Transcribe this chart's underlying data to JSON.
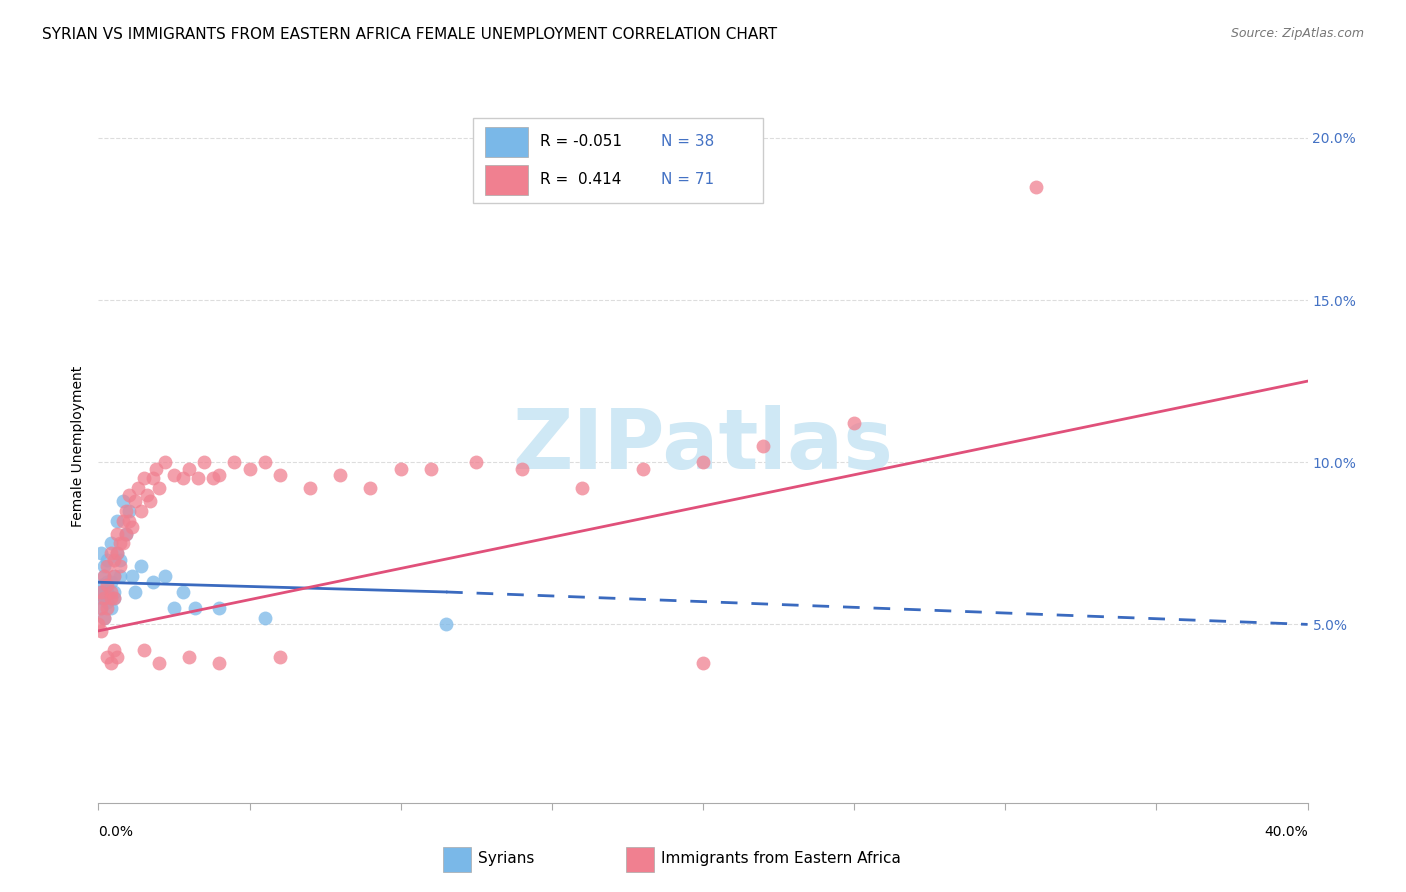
{
  "title": "SYRIAN VS IMMIGRANTS FROM EASTERN AFRICA FEMALE UNEMPLOYMENT CORRELATION CHART",
  "source": "Source: ZipAtlas.com",
  "ylabel": "Female Unemployment",
  "xlim": [
    0.0,
    0.4
  ],
  "ylim": [
    -0.005,
    0.215
  ],
  "plot_ylim": [
    0.0,
    0.215
  ],
  "yticks": [
    0.05,
    0.1,
    0.15,
    0.2
  ],
  "ytick_labels": [
    "5.0%",
    "10.0%",
    "15.0%",
    "20.0%"
  ],
  "xticks": [
    0.0,
    0.05,
    0.1,
    0.15,
    0.2,
    0.25,
    0.3,
    0.35,
    0.4
  ],
  "background_color": "#ffffff",
  "syrian_color": "#7ab8e8",
  "eastern_africa_color": "#f08090",
  "syrian_trend_color": "#3a6abf",
  "eastern_africa_trend_color": "#e0507a",
  "grid_color": "#dddddd",
  "watermark": "ZIPatlas",
  "watermark_color": "#cfe8f5",
  "title_fontsize": 11,
  "axis_label_fontsize": 10,
  "tick_fontsize": 10,
  "legend_r1": "R = -0.051",
  "legend_n1": "N = 38",
  "legend_r2": "R =  0.414",
  "legend_n2": "N = 71",
  "syrians_x": [
    0.0,
    0.001,
    0.001,
    0.001,
    0.001,
    0.002,
    0.002,
    0.002,
    0.002,
    0.002,
    0.003,
    0.003,
    0.003,
    0.003,
    0.004,
    0.004,
    0.004,
    0.005,
    0.005,
    0.005,
    0.006,
    0.006,
    0.007,
    0.007,
    0.008,
    0.009,
    0.01,
    0.011,
    0.012,
    0.014,
    0.018,
    0.022,
    0.025,
    0.028,
    0.032,
    0.04,
    0.055,
    0.115
  ],
  "syrians_y": [
    0.06,
    0.058,
    0.062,
    0.072,
    0.055,
    0.065,
    0.058,
    0.06,
    0.052,
    0.068,
    0.063,
    0.057,
    0.07,
    0.06,
    0.075,
    0.063,
    0.055,
    0.065,
    0.058,
    0.06,
    0.082,
    0.072,
    0.07,
    0.065,
    0.088,
    0.078,
    0.085,
    0.065,
    0.06,
    0.068,
    0.063,
    0.065,
    0.055,
    0.06,
    0.055,
    0.055,
    0.052,
    0.05
  ],
  "eastern_africa_x": [
    0.0,
    0.001,
    0.001,
    0.001,
    0.002,
    0.002,
    0.002,
    0.003,
    0.003,
    0.003,
    0.004,
    0.004,
    0.004,
    0.005,
    0.005,
    0.005,
    0.006,
    0.006,
    0.007,
    0.007,
    0.008,
    0.008,
    0.009,
    0.009,
    0.01,
    0.01,
    0.011,
    0.012,
    0.013,
    0.014,
    0.015,
    0.016,
    0.017,
    0.018,
    0.019,
    0.02,
    0.022,
    0.025,
    0.028,
    0.03,
    0.033,
    0.035,
    0.038,
    0.04,
    0.045,
    0.05,
    0.055,
    0.06,
    0.07,
    0.08,
    0.09,
    0.1,
    0.11,
    0.125,
    0.14,
    0.16,
    0.18,
    0.2,
    0.22,
    0.25,
    0.003,
    0.004,
    0.005,
    0.006,
    0.015,
    0.02,
    0.03,
    0.04,
    0.06,
    0.2,
    0.31
  ],
  "eastern_africa_y": [
    0.05,
    0.055,
    0.06,
    0.048,
    0.065,
    0.058,
    0.052,
    0.062,
    0.068,
    0.055,
    0.072,
    0.06,
    0.058,
    0.07,
    0.065,
    0.058,
    0.078,
    0.072,
    0.075,
    0.068,
    0.082,
    0.075,
    0.085,
    0.078,
    0.09,
    0.082,
    0.08,
    0.088,
    0.092,
    0.085,
    0.095,
    0.09,
    0.088,
    0.095,
    0.098,
    0.092,
    0.1,
    0.096,
    0.095,
    0.098,
    0.095,
    0.1,
    0.095,
    0.096,
    0.1,
    0.098,
    0.1,
    0.096,
    0.092,
    0.096,
    0.092,
    0.098,
    0.098,
    0.1,
    0.098,
    0.092,
    0.098,
    0.1,
    0.105,
    0.112,
    0.04,
    0.038,
    0.042,
    0.04,
    0.042,
    0.038,
    0.04,
    0.038,
    0.04,
    0.038,
    0.185
  ],
  "sy_trend_x0": 0.0,
  "sy_trend_x_solid_end": 0.115,
  "sy_trend_x_dash_end": 0.4,
  "sy_trend_y0": 0.063,
  "sy_trend_y_solid_end": 0.06,
  "sy_trend_y_dash_end": 0.05,
  "ea_trend_x0": 0.0,
  "ea_trend_x1": 0.4,
  "ea_trend_y0": 0.048,
  "ea_trend_y1": 0.125
}
